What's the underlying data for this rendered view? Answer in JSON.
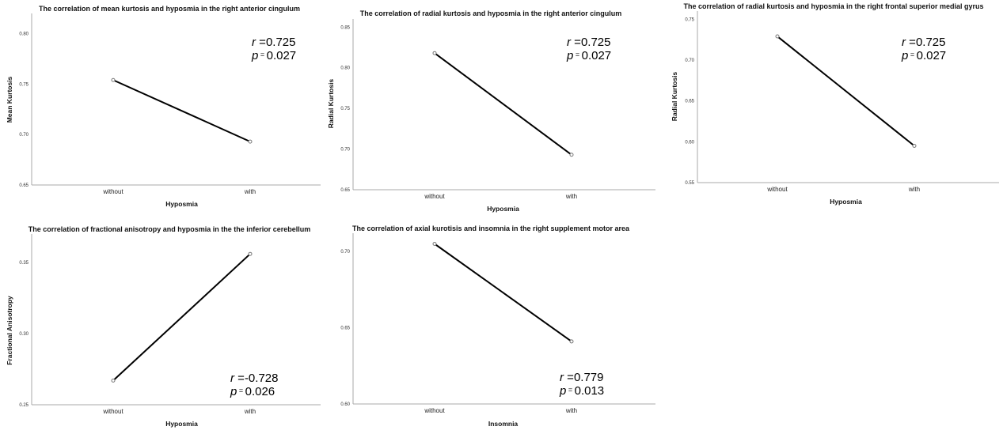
{
  "chart_data": [
    {
      "type": "line",
      "title": "The correlation of mean kurtosis and hyposmia in the right anterior cingulum",
      "xlabel": "Hyposmia",
      "ylabel": "Mean Kurtosis",
      "categories": [
        "without",
        "with"
      ],
      "values": [
        0.754,
        0.693
      ],
      "ylim": [
        0.65,
        0.82
      ],
      "yticks": [
        "0.65",
        "0.70",
        "0.75",
        "0.80"
      ],
      "stats": {
        "r_label": "r",
        "r_value": "0.725",
        "p_label": "p",
        "p_value": "0.027"
      }
    },
    {
      "type": "line",
      "title": "The correlation of radial kurtosis and hyposmia in the right anterior cingulum",
      "xlabel": "Hyposmia",
      "ylabel": "Radial Kurtosis",
      "categories": [
        "without",
        "with"
      ],
      "values": [
        0.818,
        0.693
      ],
      "ylim": [
        0.65,
        0.86
      ],
      "yticks": [
        "0.65",
        "0.70",
        "0.75",
        "0.80",
        "0.85"
      ],
      "stats": {
        "r_label": "r",
        "r_value": "0.725",
        "p_label": "p",
        "p_value": "0.027"
      }
    },
    {
      "type": "line",
      "title": "The correlation of radial kurtosis and hyposmia in the right frontal superior medial gyrus",
      "xlabel": "Hyposmia",
      "ylabel": "Radial Kurtosis",
      "categories": [
        "without",
        "with"
      ],
      "values": [
        0.729,
        0.595
      ],
      "ylim": [
        0.55,
        0.76
      ],
      "yticks": [
        "0.55",
        "0.60",
        "0.65",
        "0.70",
        "0.75"
      ],
      "stats": {
        "r_label": "r",
        "r_value": "0.725",
        "p_label": "p",
        "p_value": "0.027"
      }
    },
    {
      "type": "line",
      "title": "The correlation of fractional anisotropy and hyposmia in the the inferior cerebellum",
      "xlabel": "Hyposmia",
      "ylabel": "Fractional Anisotropy",
      "categories": [
        "without",
        "with"
      ],
      "values": [
        0.267,
        0.356
      ],
      "ylim": [
        0.25,
        0.37
      ],
      "yticks": [
        "0.25",
        "0.30",
        "0.35"
      ],
      "stats": {
        "r_label": "r",
        "r_value": "-0.728",
        "p_label": "p",
        "p_value": "0.026"
      }
    },
    {
      "type": "line",
      "title": "The correlation of axial kurotisis and insomnia in the right supplement motor area",
      "xlabel": "Insomnia",
      "ylabel": "",
      "categories": [
        "without",
        "with"
      ],
      "values": [
        0.705,
        0.641
      ],
      "ylim": [
        0.6,
        0.712
      ],
      "yticks": [
        "0.60",
        "0.65",
        "0.70"
      ],
      "stats": {
        "r_label": "r",
        "r_value": "0.779",
        "p_label": "p",
        "p_value": "0.013"
      }
    }
  ]
}
